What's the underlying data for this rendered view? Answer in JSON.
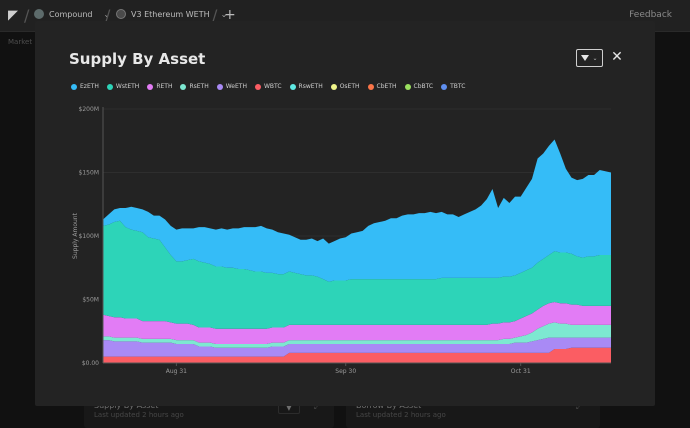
{
  "topbar": {
    "app": "Compound",
    "market": "V3 Ethereum WETH",
    "feedback": "Feedback",
    "subnav": "Market"
  },
  "background_cards": [
    {
      "title": "Supply By Asset",
      "updated": "Last updated 2 hours ago"
    },
    {
      "title": "Borrow By Asset",
      "updated": "Last updated 2 hours ago"
    }
  ],
  "modal": {
    "title": "Supply By Asset"
  },
  "legend": [
    {
      "name": "EzETH",
      "color": "#35bcf7"
    },
    {
      "name": "WstETH",
      "color": "#2dd4b8"
    },
    {
      "name": "RETH",
      "color": "#e27cf5"
    },
    {
      "name": "RsETH",
      "color": "#7de8d1"
    },
    {
      "name": "WeETH",
      "color": "#a98af5"
    },
    {
      "name": "WBTC",
      "color": "#fb5d63"
    },
    {
      "name": "RswETH",
      "color": "#5fe9e3"
    },
    {
      "name": "OsETH",
      "color": "#f0f58a"
    },
    {
      "name": "CbETH",
      "color": "#fb7548"
    },
    {
      "name": "CbBTC",
      "color": "#9be05f"
    },
    {
      "name": "TBTC",
      "color": "#5f8ff0"
    }
  ],
  "chart_data": {
    "type": "area",
    "stacked": true,
    "ylabel": "Supply Amount",
    "ylim": [
      0,
      200
    ],
    "yticks": [
      "$0.00",
      "$50M",
      "$100M",
      "$150M",
      "$200M"
    ],
    "xticks": [
      "Aug 31",
      "Sep 30",
      "Oct 31"
    ],
    "x_days": 91,
    "x_tick_days": [
      13,
      43,
      74
    ],
    "grid": true,
    "series": [
      {
        "name": "WBTC",
        "values": [
          5,
          5,
          5,
          5,
          5,
          5,
          5,
          5,
          5,
          5,
          5,
          5,
          5,
          5,
          5,
          5,
          5,
          5,
          5,
          5,
          5,
          5,
          5,
          5,
          5,
          5,
          5,
          5,
          5,
          5,
          5,
          5,
          5,
          8,
          8,
          8,
          8,
          8,
          8,
          8,
          8,
          8,
          8,
          8,
          8,
          8,
          8,
          8,
          8,
          8,
          8,
          8,
          8,
          8,
          8,
          8,
          8,
          8,
          8,
          8,
          8,
          8,
          8,
          8,
          8,
          8,
          8,
          8,
          8,
          8,
          8,
          8,
          8,
          8,
          8,
          8,
          8,
          8,
          8,
          8,
          11,
          11,
          11,
          12,
          12,
          12,
          12,
          12,
          12,
          12,
          12
        ]
      },
      {
        "name": "WeETH",
        "values": [
          13,
          13,
          12,
          12,
          12,
          12,
          12,
          11,
          11,
          11,
          11,
          11,
          11,
          10,
          10,
          10,
          10,
          8,
          8,
          8,
          7,
          7,
          7,
          7,
          7,
          7,
          7,
          7,
          7,
          7,
          8,
          8,
          8,
          7,
          7,
          7,
          7,
          7,
          7,
          7,
          7,
          7,
          7,
          7,
          7,
          7,
          7,
          7,
          7,
          7,
          7,
          7,
          7,
          7,
          7,
          7,
          7,
          7,
          7,
          7,
          7,
          7,
          7,
          7,
          7,
          7,
          7,
          7,
          7,
          7,
          7,
          7,
          7,
          8,
          8,
          8,
          9,
          10,
          11,
          12,
          9,
          9,
          9,
          8,
          8,
          8,
          8,
          8,
          8,
          8,
          8
        ]
      },
      {
        "name": "RsETH",
        "values": [
          3,
          3,
          3,
          3,
          3,
          3,
          3,
          3,
          3,
          3,
          3,
          3,
          3,
          3,
          3,
          3,
          3,
          3,
          3,
          3,
          3,
          3,
          3,
          3,
          3,
          3,
          3,
          3,
          3,
          3,
          3,
          3,
          3,
          3,
          3,
          3,
          3,
          3,
          3,
          3,
          3,
          3,
          3,
          3,
          3,
          3,
          3,
          3,
          3,
          3,
          3,
          3,
          3,
          3,
          3,
          3,
          3,
          3,
          3,
          3,
          3,
          3,
          3,
          3,
          3,
          3,
          3,
          3,
          3,
          3,
          3,
          4,
          4,
          4,
          5,
          6,
          7,
          9,
          10,
          11,
          12,
          11,
          11,
          10,
          10,
          10,
          10,
          10,
          10,
          10,
          10
        ]
      },
      {
        "name": "RETH",
        "values": [
          17,
          16,
          16,
          16,
          15,
          15,
          15,
          14,
          14,
          14,
          14,
          14,
          13,
          13,
          13,
          13,
          12,
          12,
          12,
          12,
          12,
          12,
          12,
          12,
          12,
          12,
          12,
          12,
          12,
          12,
          12,
          12,
          12,
          12,
          12,
          12,
          12,
          12,
          12,
          12,
          12,
          12,
          12,
          12,
          12,
          12,
          12,
          12,
          12,
          12,
          12,
          12,
          12,
          12,
          12,
          12,
          12,
          12,
          12,
          12,
          12,
          12,
          12,
          12,
          12,
          12,
          12,
          12,
          12,
          13,
          13,
          13,
          13,
          13,
          14,
          15,
          15,
          15,
          16,
          16,
          16,
          16,
          16,
          16,
          16,
          15,
          15,
          15,
          15,
          15,
          15
        ]
      },
      {
        "name": "WstETH",
        "values": [
          70,
          72,
          75,
          76,
          72,
          70,
          69,
          70,
          66,
          65,
          64,
          58,
          53,
          49,
          49,
          50,
          52,
          52,
          51,
          50,
          49,
          49,
          48,
          48,
          47,
          47,
          46,
          45,
          45,
          44,
          43,
          42,
          42,
          42,
          41,
          40,
          39,
          39,
          38,
          36,
          34,
          35,
          35,
          35,
          36,
          36,
          36,
          36,
          36,
          36,
          36,
          36,
          36,
          36,
          36,
          36,
          36,
          36,
          36,
          36,
          37,
          37,
          37,
          37,
          37,
          37,
          37,
          37,
          37,
          36,
          36,
          36,
          36,
          36,
          36,
          36,
          36,
          37,
          37,
          38,
          40,
          40,
          40,
          40,
          38,
          38,
          39,
          39,
          40,
          40,
          40
        ]
      },
      {
        "name": "EzETH",
        "values": [
          5,
          8,
          10,
          10,
          15,
          18,
          18,
          18,
          20,
          18,
          19,
          22,
          23,
          25,
          26,
          25,
          24,
          27,
          28,
          28,
          29,
          30,
          30,
          31,
          32,
          33,
          34,
          35,
          36,
          35,
          34,
          33,
          32,
          29,
          28,
          27,
          28,
          29,
          28,
          32,
          30,
          31,
          33,
          34,
          36,
          37,
          38,
          42,
          44,
          45,
          46,
          48,
          48,
          50,
          51,
          51,
          52,
          52,
          53,
          52,
          52,
          50,
          50,
          48,
          50,
          52,
          54,
          57,
          62,
          70,
          55,
          62,
          58,
          62,
          60,
          65,
          70,
          82,
          83,
          86,
          88,
          78,
          66,
          60,
          60,
          62,
          64,
          64,
          67,
          66,
          65
        ]
      }
    ]
  }
}
